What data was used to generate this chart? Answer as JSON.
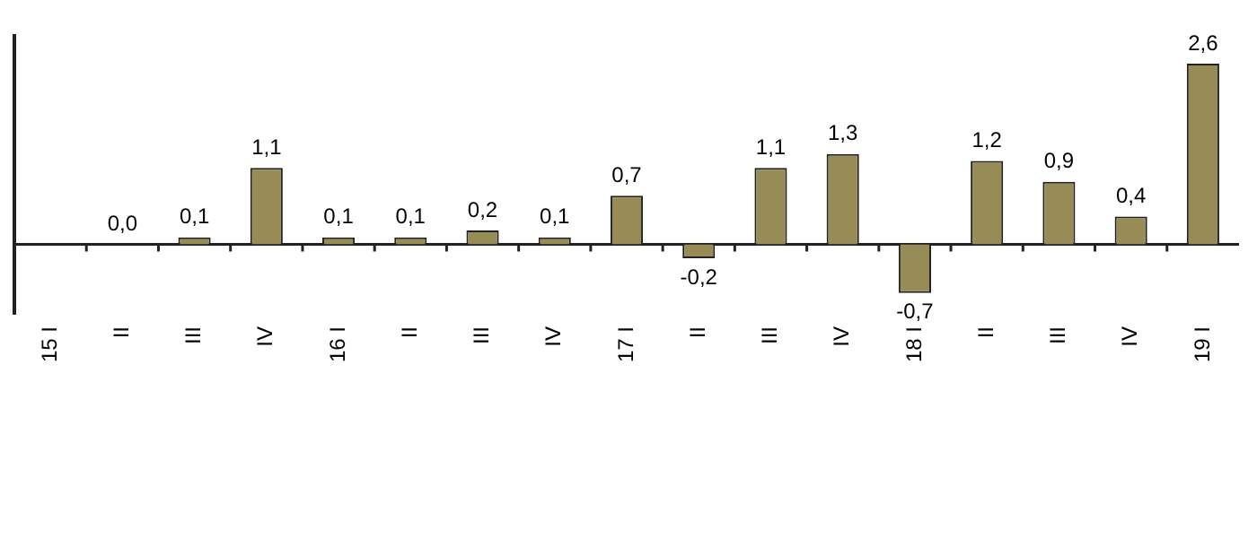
{
  "chart_data": {
    "type": "bar",
    "categories": [
      "15 I",
      "II",
      "III",
      "IV",
      "16 I",
      "II",
      "III",
      "IV",
      "17 I",
      "II",
      "III",
      "IV",
      "18 I",
      "II",
      "III",
      "IV",
      "19 I"
    ],
    "values": [
      null,
      0.0,
      0.1,
      1.1,
      0.1,
      0.1,
      0.2,
      0.1,
      0.7,
      -0.2,
      1.1,
      1.3,
      -0.7,
      1.2,
      0.9,
      0.4,
      2.6
    ],
    "value_labels": [
      null,
      "0,0",
      "0,1",
      "1,1",
      "0,1",
      "0,1",
      "0,2",
      "0,1",
      "0,7",
      "-0,2",
      "1,1",
      "1,3",
      "-0,7",
      "1,2",
      "0,9",
      "0,4",
      "2,6"
    ],
    "color": "#978c55",
    "tick_labels": "x",
    "grid": false,
    "legend": false
  }
}
